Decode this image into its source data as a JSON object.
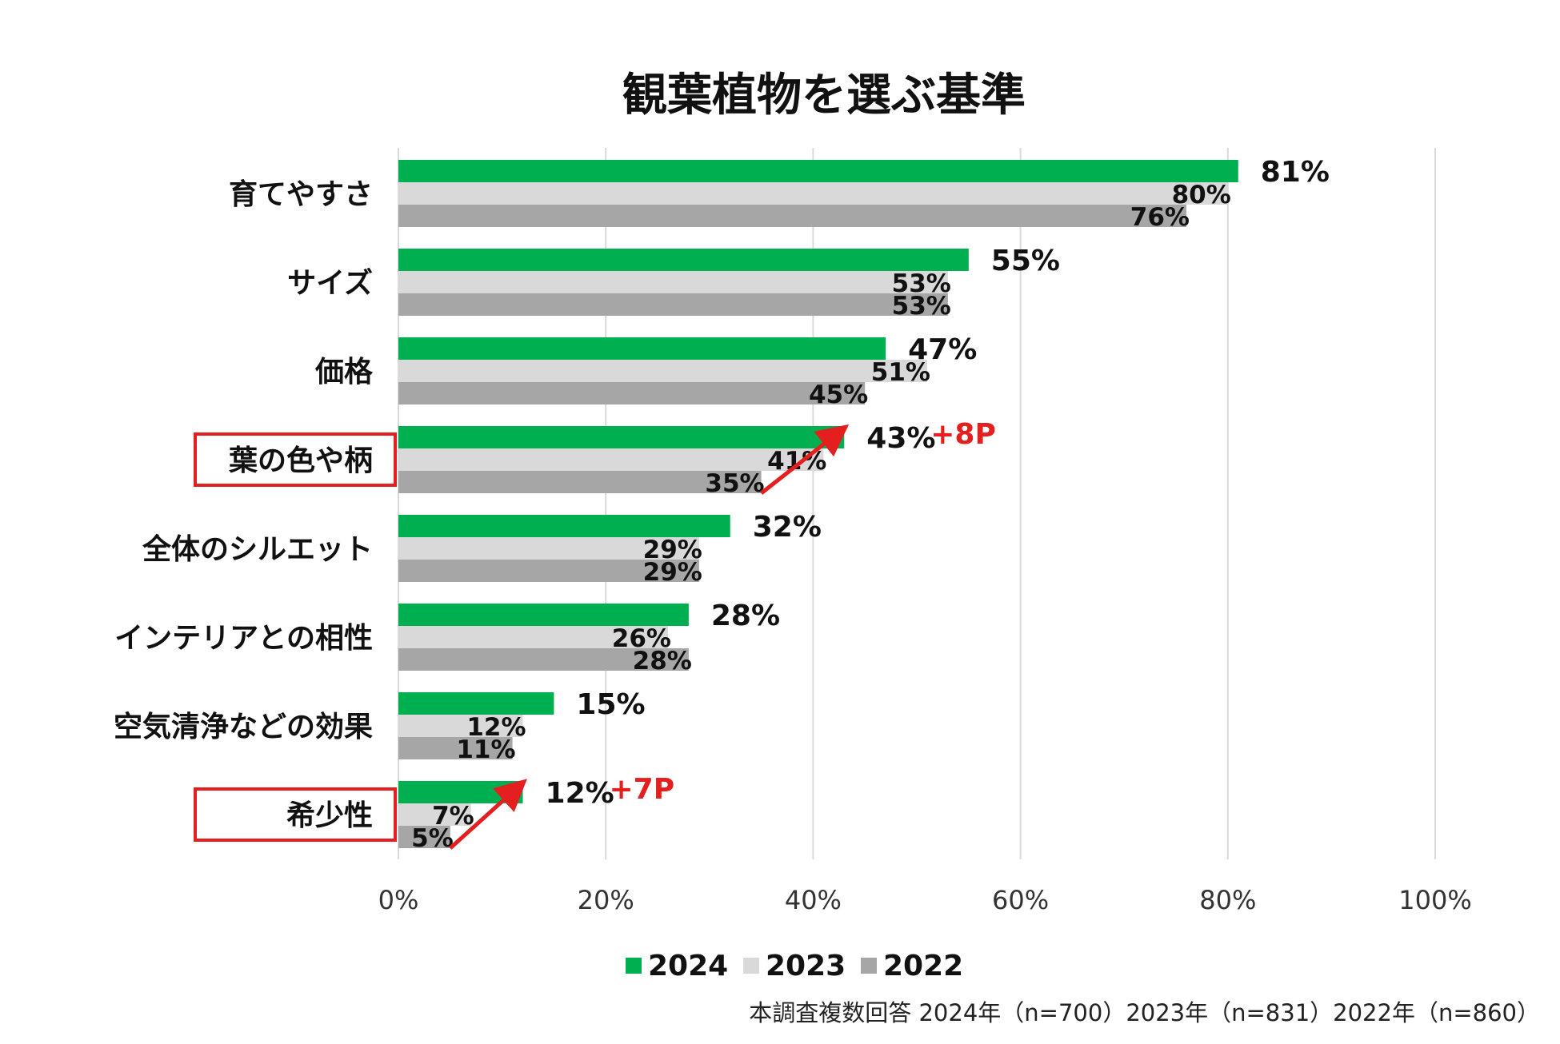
{
  "chart_data": {
    "type": "bar",
    "orientation": "horizontal",
    "title": "観葉植物を選ぶ基準",
    "categories": [
      "育てやすさ",
      "サイズ",
      "価格",
      "葉の色や柄",
      "全体のシルエット",
      "インテリアとの相性",
      "空気清浄などの効果",
      "希少性"
    ],
    "series": [
      {
        "name": "2024",
        "color": "#00b050",
        "values": [
          81,
          55,
          47,
          43,
          32,
          28,
          15,
          12
        ]
      },
      {
        "name": "2023",
        "color": "#d9d9d9",
        "values": [
          80,
          53,
          51,
          41,
          29,
          26,
          12,
          7
        ]
      },
      {
        "name": "2022",
        "color": "#a6a6a6",
        "values": [
          76,
          53,
          45,
          35,
          29,
          28,
          11,
          5
        ]
      }
    ],
    "xlim": [
      0,
      100
    ],
    "x_ticks": [
      "0%",
      "20%",
      "40%",
      "60%",
      "80%",
      "100%"
    ],
    "value_suffix": "%",
    "highlighted_categories": [
      "葉の色や柄",
      "希少性"
    ],
    "highlight_color": "#e41f1f",
    "annotations": [
      {
        "category": "葉の色や柄",
        "text": "+8P",
        "from_series": "2022",
        "to_series": "2024"
      },
      {
        "category": "希少性",
        "text": "+7P",
        "from_series": "2022",
        "to_series": "2024"
      }
    ],
    "legend_position": "bottom",
    "grid": true,
    "note": "本調査複数回答 2024年（n=700）2023年（n=831）2022年（n=860）"
  }
}
